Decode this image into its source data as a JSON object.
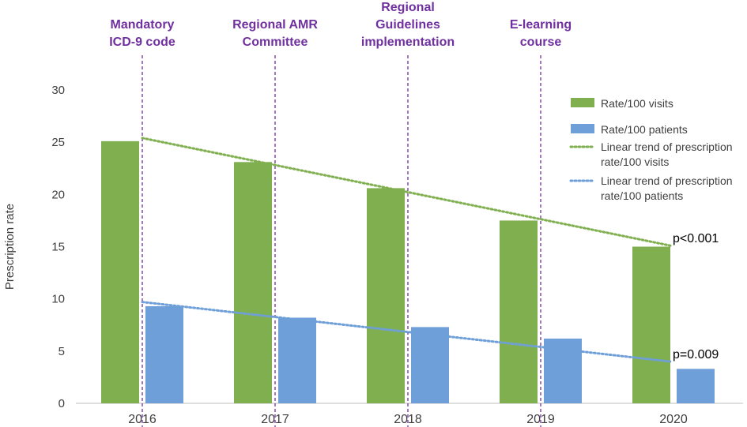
{
  "chart_data": {
    "type": "bar",
    "title": "",
    "xlabel": "",
    "ylabel": "Prescription rate",
    "ylim": [
      0,
      30
    ],
    "yticks": [
      0,
      5,
      10,
      15,
      20,
      25,
      30
    ],
    "categories": [
      "2016",
      "2017",
      "2018",
      "2019",
      "2020"
    ],
    "series": [
      {
        "name": "Rate/100 visits",
        "color": "#7faf4f",
        "values": [
          25.1,
          23.1,
          20.6,
          17.5,
          15.0
        ]
      },
      {
        "name": "Rate/100 patients",
        "color": "#6f9fd8",
        "values": [
          9.3,
          8.2,
          7.3,
          6.2,
          3.3
        ]
      }
    ],
    "trendlines": [
      {
        "name": [
          "Linear trend of prescription",
          "rate/100 visits"
        ],
        "color": "#7faf4f",
        "start": 25.4,
        "end": 15.1,
        "p_value": "p<0.001"
      },
      {
        "name": [
          "Linear trend of prescription",
          "rate/100 patients"
        ],
        "color": "#6f9fd8",
        "start": 9.7,
        "end": 4.0,
        "p_value": "p=0.009"
      }
    ],
    "events": [
      {
        "lines": [
          "Mandatory",
          "ICD-9 code"
        ]
      },
      {
        "lines": [
          "Regional AMR",
          "Committee"
        ]
      },
      {
        "lines": [
          "Regional",
          "Guidelines",
          "implementation"
        ]
      },
      {
        "lines": [
          "E-learning",
          "course"
        ]
      }
    ],
    "event_color": "#7030a0",
    "legend_position": "right",
    "grid": false
  }
}
